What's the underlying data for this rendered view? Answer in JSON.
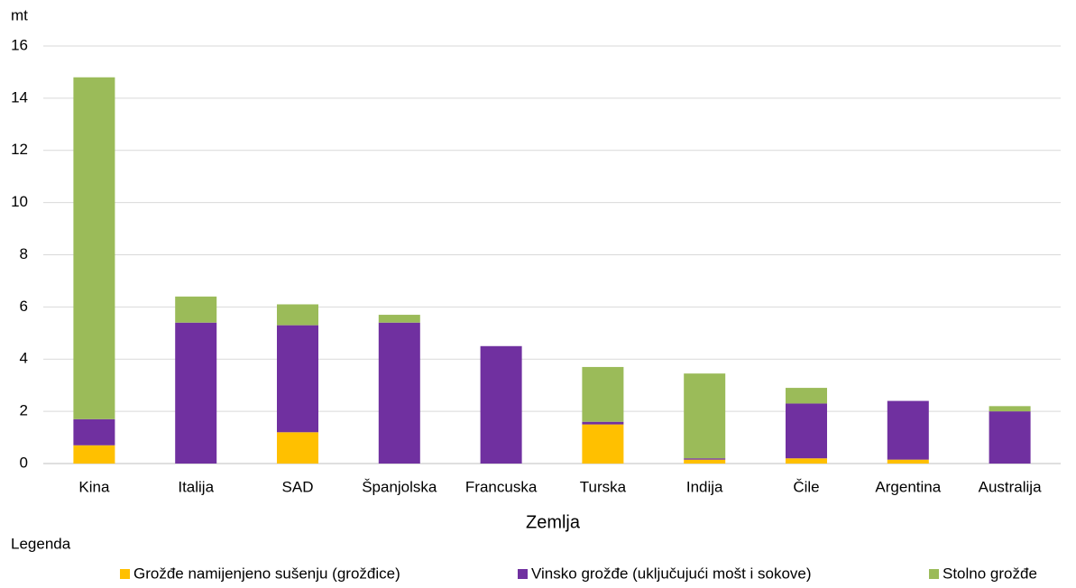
{
  "chart_data": {
    "type": "stacked_bar",
    "y_label": "mt",
    "x_label": "Zemlja",
    "legend_title": "Legenda",
    "categories": [
      "Kina",
      "Italija",
      "SAD",
      "Španjolska",
      "Francuska",
      "Turska",
      "Indija",
      "Čile",
      "Argentina",
      "Australija"
    ],
    "series": [
      {
        "name": "Grožđe namijenjeno sušenju (grožđice)",
        "color": "#ffc000",
        "values": [
          0.7,
          0,
          1.2,
          0,
          0,
          1.5,
          0.15,
          0.2,
          0.15,
          0
        ]
      },
      {
        "name": "Vinsko grožđe (uključujući mošt i sokove)",
        "color": "#7030a0",
        "values": [
          1.0,
          5.4,
          4.1,
          5.4,
          4.5,
          0.1,
          0.05,
          2.1,
          2.25,
          2.0
        ]
      },
      {
        "name": "Stolno grožđe",
        "color": "#9bbb59",
        "values": [
          13.1,
          1.0,
          0.8,
          0.3,
          0,
          2.1,
          3.25,
          0.6,
          0,
          0.2
        ]
      }
    ],
    "ylim": [
      0,
      16
    ],
    "yticks": [
      0,
      2,
      4,
      6,
      8,
      10,
      12,
      14,
      16
    ],
    "grid": true,
    "legend": "bottom"
  }
}
